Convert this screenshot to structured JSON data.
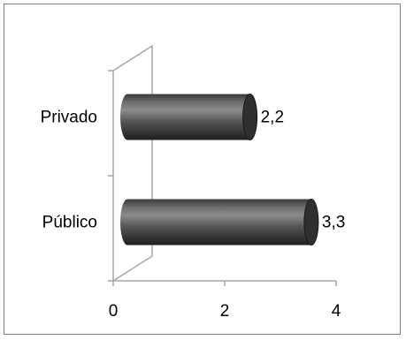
{
  "chart_data": {
    "type": "bar",
    "orientation": "horizontal",
    "style": "3d-cylinder",
    "title": "",
    "xlabel": "",
    "ylabel": "",
    "categories": [
      "Público",
      "Privado"
    ],
    "values": [
      3.3,
      2.2
    ],
    "value_labels": [
      "3,3",
      "2,2"
    ],
    "x_ticks": [
      0,
      2,
      4
    ],
    "x_tick_labels": [
      "0",
      "2",
      "4"
    ],
    "xlim": [
      0,
      4
    ],
    "grid": false,
    "legend": "none",
    "colors": {
      "bar_body": "#4a4a4a",
      "bar_light": "#8a8a8a",
      "bar_cap": "#2f2f2f",
      "axis": "#a6a6a6"
    }
  }
}
